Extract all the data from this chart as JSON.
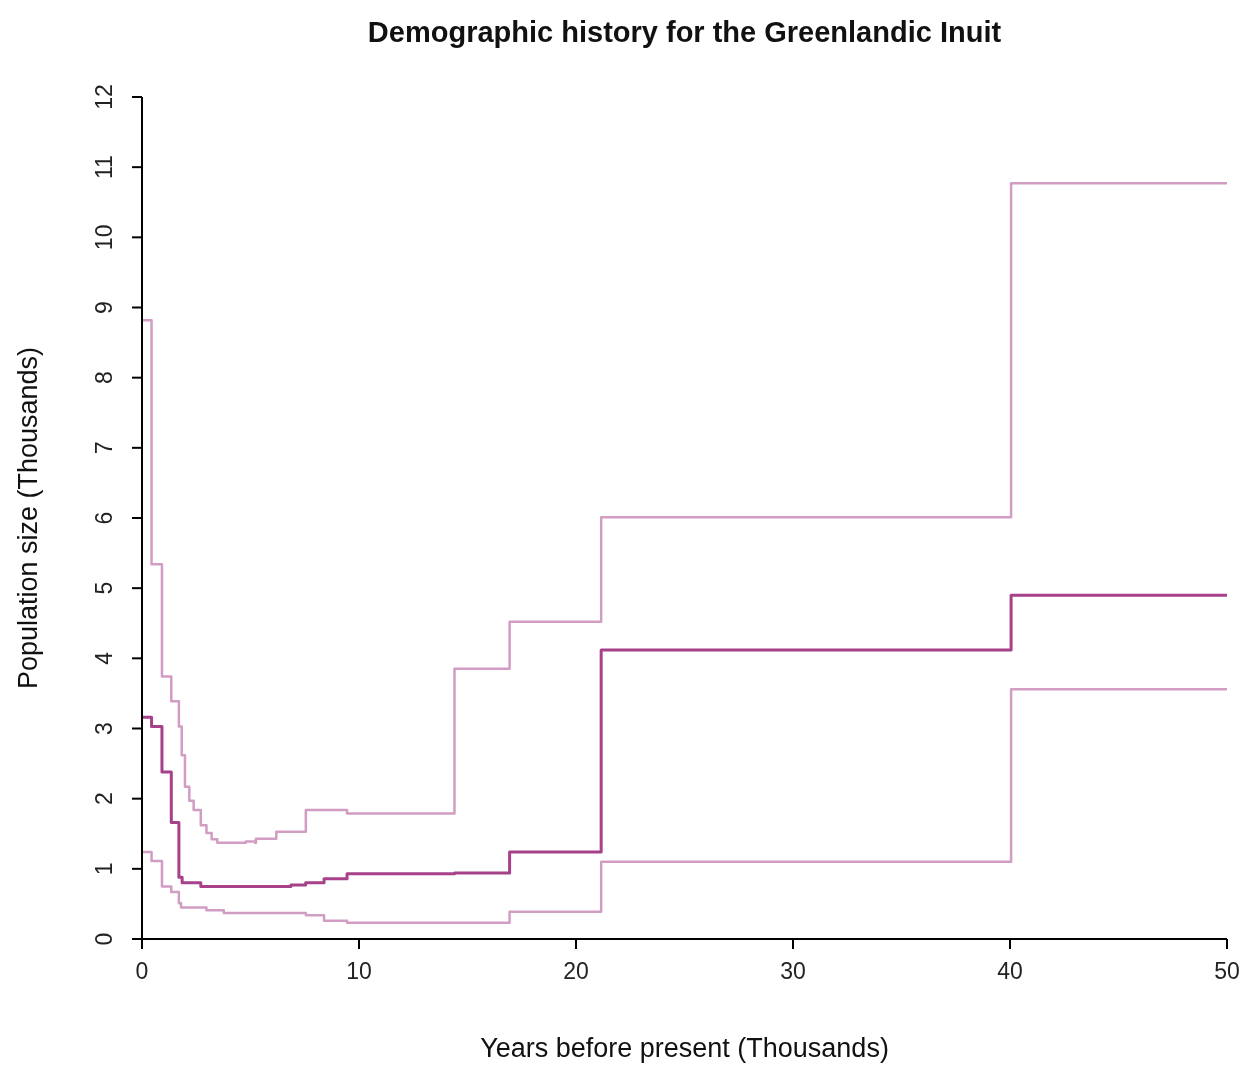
{
  "chart_data": {
    "type": "step",
    "title": "Demographic history for the Greenlandic Inuit",
    "xlabel": "Years before present (Thousands)",
    "ylabel": "Population size (Thousands)",
    "xlim": [
      0,
      50
    ],
    "xticks": [
      0,
      10,
      20,
      30,
      40,
      50
    ],
    "ylim": [
      0,
      12
    ],
    "yticks": [
      0,
      1,
      2,
      3,
      4,
      5,
      6,
      7,
      8,
      9,
      10,
      11,
      12
    ],
    "grid": false,
    "series": [
      {
        "color": "#d29dc3",
        "x": [
          0,
          0.44,
          0.92,
          1.35,
          1.7,
          1.83,
          1.98,
          2.18,
          2.38,
          2.71,
          2.97,
          3.21,
          3.47,
          4.78,
          5.21,
          5.25,
          6.19,
          7.55,
          9.45,
          14.4,
          16.94,
          21.16,
          40.05,
          50
        ],
        "values": [
          8.82,
          5.34,
          3.74,
          3.39,
          3.03,
          2.62,
          2.17,
          1.97,
          1.84,
          1.62,
          1.51,
          1.42,
          1.37,
          1.39,
          1.37,
          1.43,
          1.53,
          1.84,
          1.79,
          3.85,
          4.52,
          6.01,
          10.77,
          10.77
        ]
      },
      {
        "color": "#a6418a",
        "x": [
          0,
          0.44,
          0.92,
          1.35,
          1.7,
          1.85,
          2.71,
          6.86,
          7.54,
          8.39,
          9.45,
          14.4,
          16.94,
          21.16,
          40.05,
          50
        ],
        "values": [
          3.16,
          3.03,
          2.38,
          1.66,
          0.88,
          0.8,
          0.75,
          0.77,
          0.8,
          0.86,
          0.93,
          0.94,
          1.24,
          4.12,
          4.9,
          4.9
        ]
      },
      {
        "color": "#d29dc3",
        "x": [
          0,
          0.44,
          0.92,
          1.35,
          1.7,
          1.8,
          2.97,
          3.77,
          7.55,
          8.39,
          9.45,
          16.94,
          21.16,
          40.05,
          50
        ],
        "values": [
          1.24,
          1.11,
          0.75,
          0.67,
          0.51,
          0.45,
          0.41,
          0.37,
          0.34,
          0.26,
          0.23,
          0.39,
          1.1,
          3.56,
          3.56
        ]
      }
    ]
  }
}
